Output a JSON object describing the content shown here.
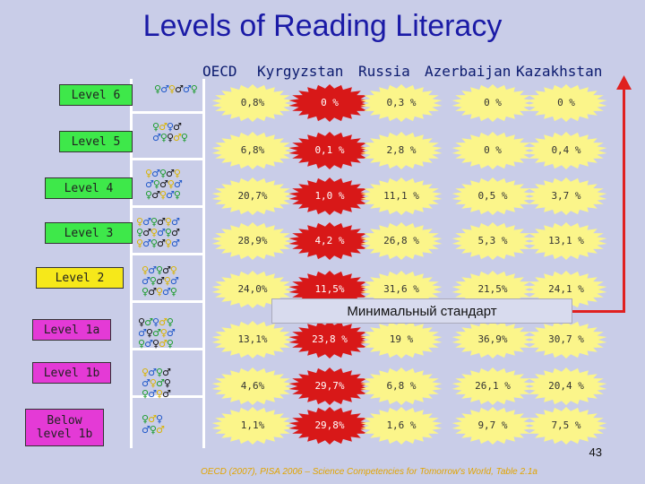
{
  "title": "Levels of Reading Literacy",
  "columns": [
    "OECD",
    "Kyrgyzstan",
    "Russia",
    "Azerbaijan",
    "Kazakhstan"
  ],
  "levels": [
    {
      "label": "Level 6",
      "color": "#3ee84a",
      "values": [
        "0,8%",
        "0 %",
        "0,3 %",
        "0 %",
        "0 %"
      ]
    },
    {
      "label": "Level 5",
      "color": "#3ee84a",
      "values": [
        "6,8%",
        "0,1 %",
        "2,8 %",
        "0 %",
        "0,4 %"
      ]
    },
    {
      "label": "Level 4",
      "color": "#3ee84a",
      "values": [
        "20,7%",
        "1,0 %",
        "11,1 %",
        "0,5 %",
        "3,7 %"
      ]
    },
    {
      "label": "Level 3",
      "color": "#3ee84a",
      "values": [
        "28,9%",
        "4,2 %",
        "26,8 %",
        "5,3 %",
        "13,1 %"
      ]
    },
    {
      "label": "Level 2",
      "color": "#f6e81a",
      "values": [
        "24,0%",
        "11,5%",
        "31,6 %",
        "21,5%",
        "24,1 %"
      ]
    },
    {
      "label": "Level 1a",
      "color": "#e43ad6",
      "values": [
        "13,1%",
        "23,8 %",
        "19 %",
        "36,9%",
        "30,7 %"
      ]
    },
    {
      "label": "Level 1b",
      "color": "#e43ad6",
      "values": [
        "4,6%",
        "29,7%",
        "6,8 %",
        "26,1 %",
        "20,4 %"
      ]
    },
    {
      "label": "Below level 1b",
      "color": "#e43ad6",
      "values": [
        "1,1%",
        "29,8%",
        "1,6 %",
        "9,7 %",
        "7,5 %"
      ]
    }
  ],
  "minimum_standard": "Минимальный стандарт",
  "page_number": "43",
  "source": "OECD (2007), PISA 2006 – Science Competencies for Tomorrow's World, Table 2.1a",
  "colors": {
    "title": "#1a1aa6",
    "highlight_column": "#d81818",
    "star": "#fbf58a",
    "arrow": "#e02020"
  },
  "icons": [
    "person-figure-icon"
  ]
}
